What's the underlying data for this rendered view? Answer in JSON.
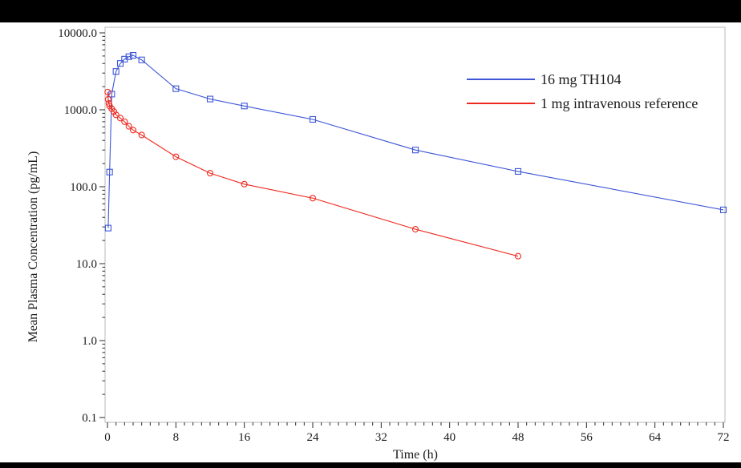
{
  "page": {
    "background": "#ffffff",
    "top_bar_color": "#000000",
    "bottom_bar_color": "#000000",
    "text_color": "#1a1a1a",
    "frame_color": "#b9b9b9",
    "tick_color": "#2b2b2b"
  },
  "chart_data": {
    "type": "line",
    "title": "",
    "xlabel": "Time (h)",
    "ylabel": "Mean Plasma Concentration (pg/mL)",
    "x_axis": {
      "label": "Time (h)",
      "range": [
        0,
        72
      ],
      "major_ticks": [
        0,
        8,
        16,
        24,
        32,
        40,
        48,
        56,
        64,
        72
      ],
      "tick_labels": [
        "0",
        "8",
        "16",
        "24",
        "32",
        "40",
        "48",
        "56",
        "64",
        "72"
      ],
      "minor_tick_step": 1,
      "grid": false
    },
    "y_axis": {
      "label": "Mean Plasma Concentration (pg/mL)",
      "scale": "log",
      "range": [
        0.1,
        10000
      ],
      "tick_values": [
        10000,
        1000,
        100,
        10,
        1,
        0.1
      ],
      "tick_labels": [
        "10000.0",
        "1000.0",
        "100.0",
        "10.0",
        "1.0",
        "0.1"
      ],
      "log_minor_ticks": true,
      "grid": false
    },
    "legend": {
      "position": "top-right-inside"
    },
    "series": [
      {
        "name": "16 mg TH104",
        "color": "#3d56d6",
        "label_color": "#4a7ed2",
        "marker": "square",
        "points": [
          [
            0.083,
            29
          ],
          [
            0.25,
            155
          ],
          [
            0.5,
            1600
          ],
          [
            1,
            3150
          ],
          [
            1.5,
            4000
          ],
          [
            2,
            4550
          ],
          [
            2.5,
            4900
          ],
          [
            3,
            5100
          ],
          [
            4,
            4450
          ],
          [
            8,
            1880
          ],
          [
            12,
            1380
          ],
          [
            16,
            1120
          ],
          [
            24,
            750
          ],
          [
            36,
            300
          ],
          [
            48,
            158
          ],
          [
            72,
            50
          ]
        ]
      },
      {
        "name": "1 mg intravenous reference",
        "color": "#ee2a20",
        "label_color": "#000000",
        "marker": "circle",
        "points": [
          [
            0.033,
            1700
          ],
          [
            0.083,
            1370
          ],
          [
            0.167,
            1210
          ],
          [
            0.25,
            1120
          ],
          [
            0.5,
            1030
          ],
          [
            0.75,
            950
          ],
          [
            1,
            860
          ],
          [
            1.5,
            780
          ],
          [
            2,
            700
          ],
          [
            2.5,
            610
          ],
          [
            3,
            545
          ],
          [
            4,
            470
          ],
          [
            8,
            245
          ],
          [
            12,
            150
          ],
          [
            16,
            108
          ],
          [
            24,
            71
          ],
          [
            36,
            28
          ],
          [
            48,
            12.5
          ]
        ]
      }
    ]
  }
}
